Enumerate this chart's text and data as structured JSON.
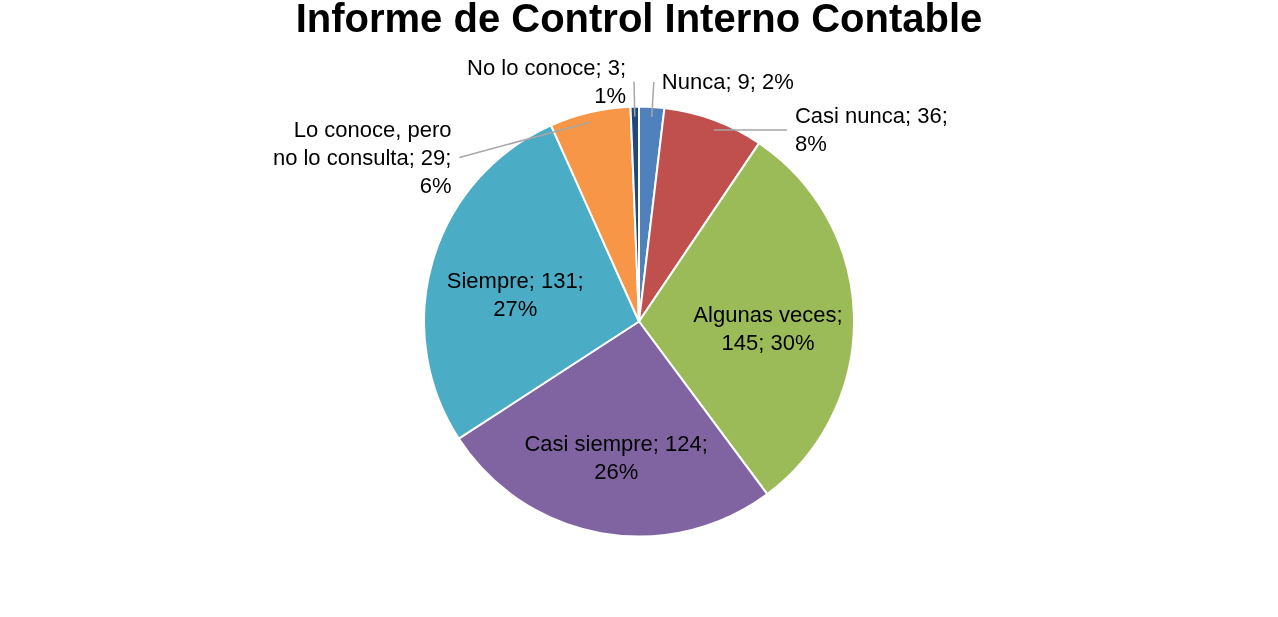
{
  "chart_data": {
    "type": "pie",
    "title": "Informe de Control Interno Contable",
    "categories": [
      "Nunca",
      "Casi nunca",
      "Algunas veces",
      "Casi siempre",
      "Siempre",
      "Lo conoce, pero no lo consulta",
      "No lo conoce"
    ],
    "values": [
      9,
      36,
      145,
      124,
      131,
      29,
      3
    ],
    "colors": [
      "#4f81bd",
      "#c0504d",
      "#9bbb59",
      "#8064a2",
      "#4bacc6",
      "#f79646",
      "#1f497d"
    ],
    "value_labels": [
      "; 9; 2%",
      "; 36; 8%",
      "; 145; 30%",
      "; 124; 26%",
      "; 131; 27%",
      "; 29; 6%",
      "; 3; 1%"
    ],
    "legend": false
  }
}
